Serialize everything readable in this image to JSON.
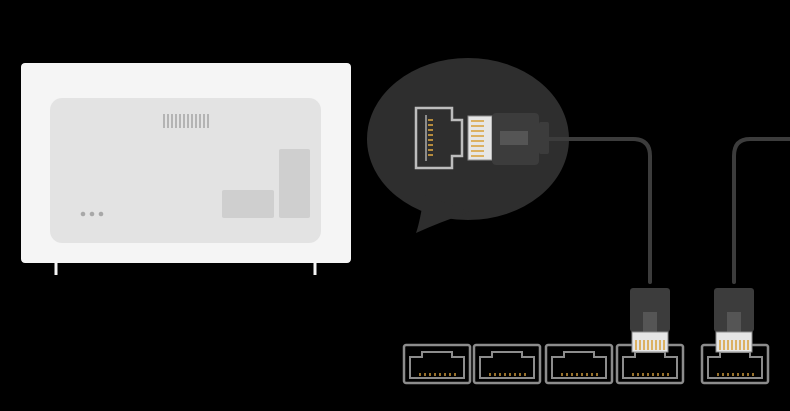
{
  "diagram": {
    "subject": "tv-ethernet-lan-connection",
    "colors": {
      "background": "#000000",
      "tv_body": "#f5f5f5",
      "tv_panel": "#e3e3e3",
      "tv_detail": "#cfcfcf",
      "bubble": "#2e2e2e",
      "cable": "#3c3c3c",
      "port_outline": "#8c8c8c",
      "pin_gold": "#d9a441"
    },
    "ports": [
      {
        "id": "lan-1",
        "connected": false
      },
      {
        "id": "lan-2",
        "connected": false
      },
      {
        "id": "lan-3",
        "connected": false
      },
      {
        "id": "lan-4",
        "connected": true
      },
      {
        "id": "lan-5",
        "connected": true
      }
    ]
  }
}
